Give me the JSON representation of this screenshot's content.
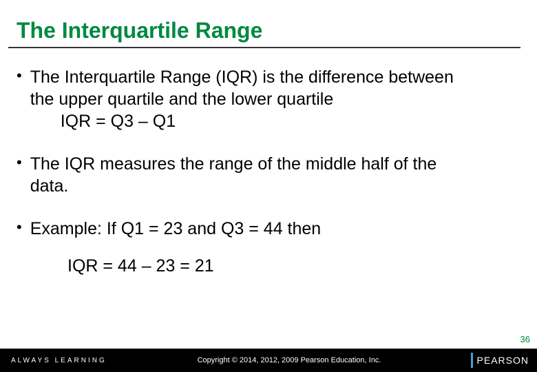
{
  "title": "The Interquartile Range",
  "bullets": [
    {
      "line1": "The Interquartile Range (IQR) is the difference between",
      "line2": "the upper quartile and the lower quartile",
      "formula": "IQR = Q3 – Q1"
    },
    {
      "line1": "The IQR measures the range of the middle half of the",
      "line2": "data."
    },
    {
      "line1": "Example:  If Q1 = 23 and Q3 = 44 then"
    }
  ],
  "example_calc": "IQR = 44 – 23 = 21",
  "footer": {
    "left": "ALWAYS LEARNING",
    "center": "Copyright © 2014, 2012, 2009 Pearson Education, Inc.",
    "brand": "PEARSON"
  },
  "page_number": "36",
  "colors": {
    "title": "#008941",
    "underline": "#333333",
    "footer_bg": "#000000",
    "footer_text": "#ffffff",
    "brand_bar": "#4aa0d8",
    "page_num": "#008941",
    "body_text": "#000000",
    "background": "#ffffff"
  }
}
